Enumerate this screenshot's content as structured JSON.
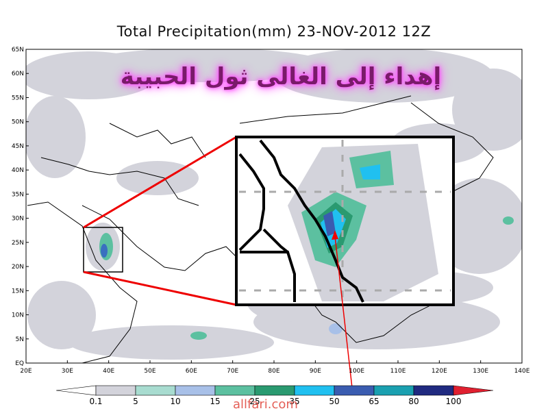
{
  "header": {
    "title": "Total Precipitation(mm) 23-NOV-2012 12Z",
    "dedication": "إهداء إلى الغالى ثول الحبيبة"
  },
  "axes": {
    "latitude_labels": [
      "EQ",
      "5N",
      "10N",
      "15N",
      "20N",
      "25N",
      "30N",
      "35N",
      "40N",
      "45N",
      "50N",
      "55N",
      "60N",
      "65N"
    ],
    "longitude_labels": [
      "20E",
      "30E",
      "40E",
      "50E",
      "60E",
      "70E",
      "80E",
      "90E",
      "100E",
      "110E",
      "120E",
      "130E",
      "140E"
    ]
  },
  "colorbar": {
    "labels": [
      "0.1",
      "5",
      "10",
      "15",
      "25",
      "35",
      "50",
      "65",
      "80",
      "100"
    ],
    "colors": [
      "#ffffff",
      "#d3d3db",
      "#a8dcd0",
      "#a8c0e8",
      "#5cc0a0",
      "#2a9a70",
      "#20c0f0",
      "#3a5cb0",
      "#1aa0b0",
      "#202a80",
      "#e02030"
    ]
  },
  "footer": {
    "watermark": "allfari.com"
  }
}
